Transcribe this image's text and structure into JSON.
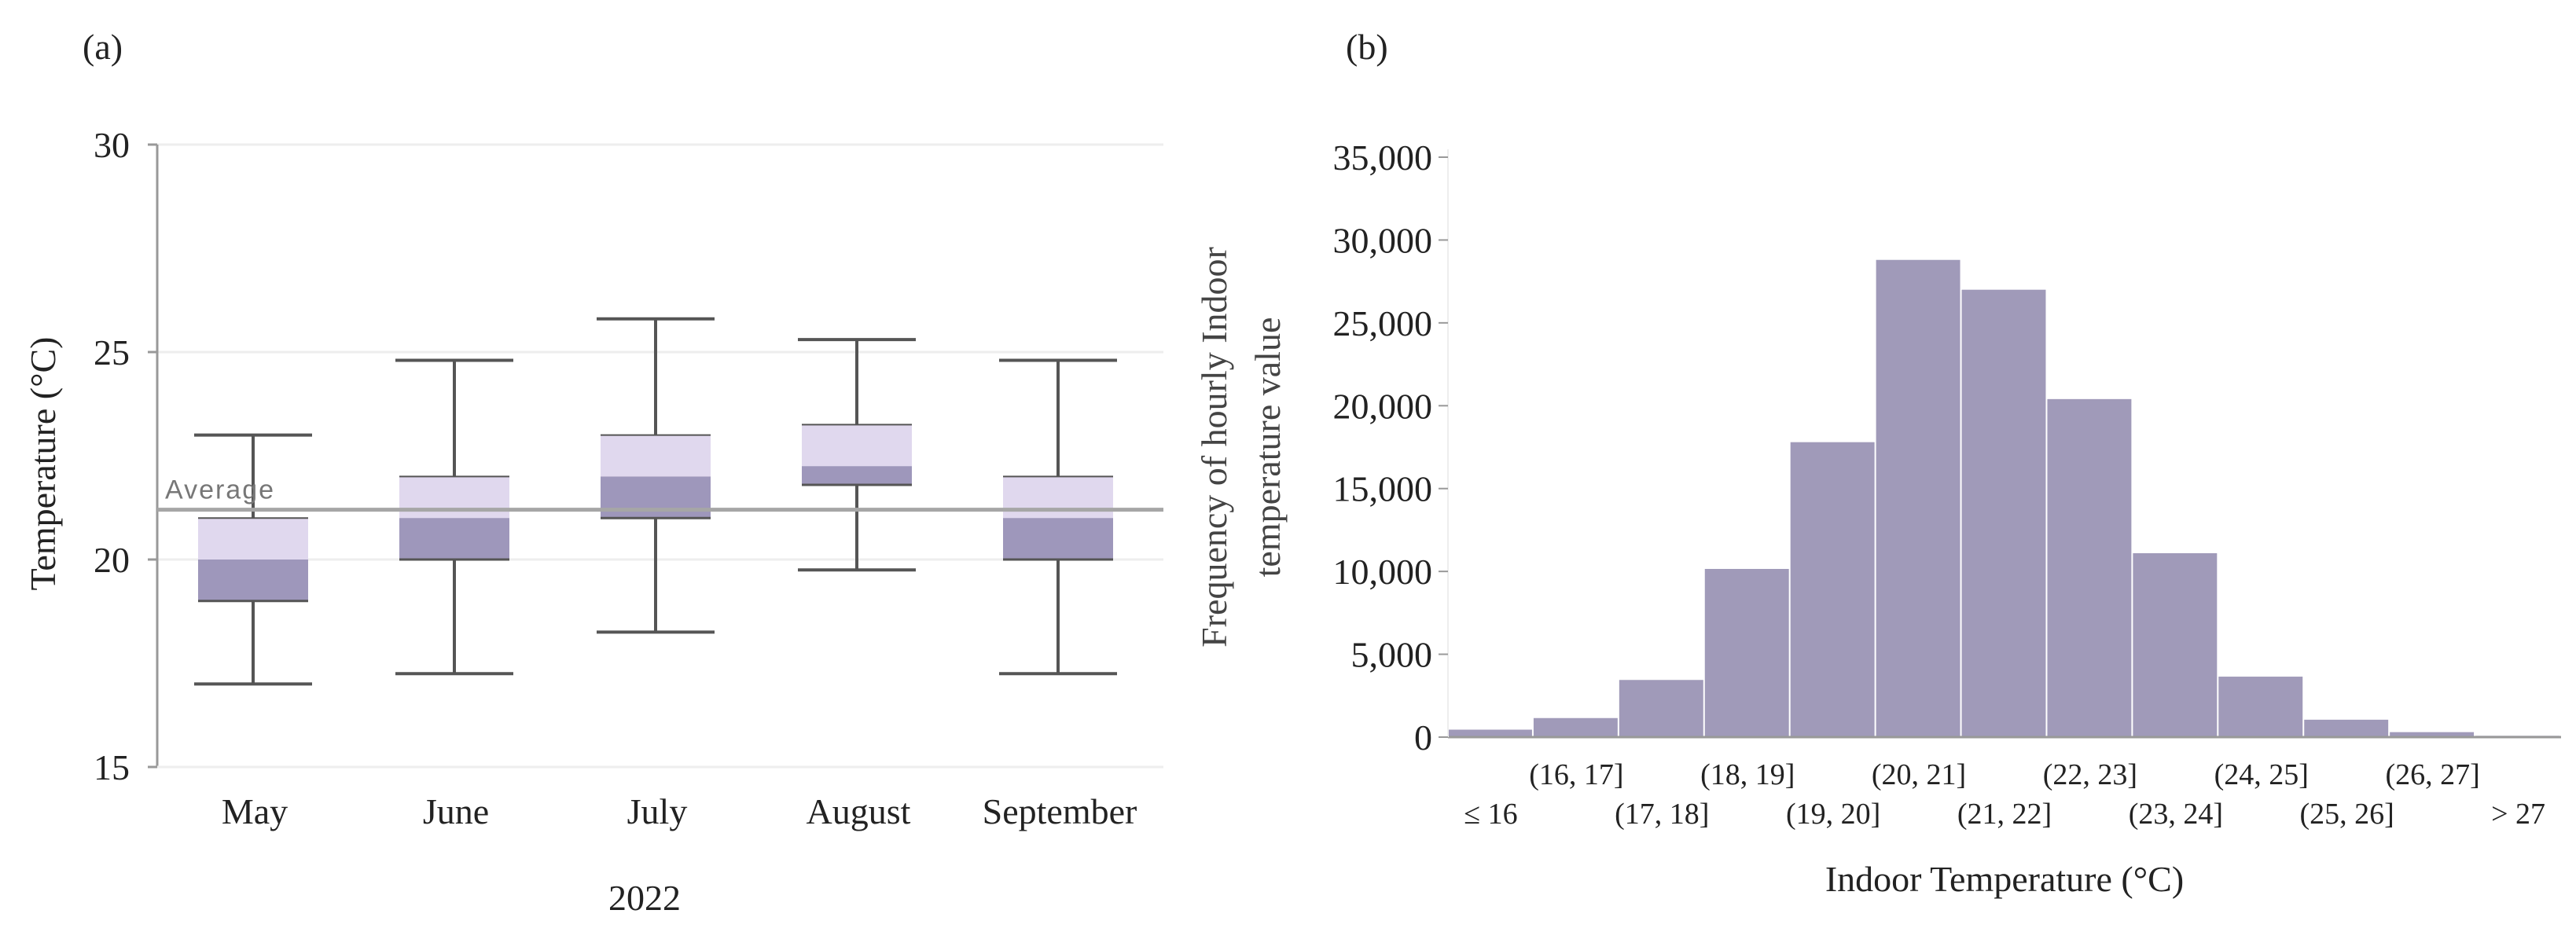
{
  "panel_a_label": "(a)",
  "panel_b_label": "(b)",
  "colors": {
    "box_upper": "#e0d8ee",
    "box_lower": "#9e97bb",
    "whisker": "#555555",
    "average_line": "#a6a6a6",
    "bar_fill": "#a09ab9",
    "axis": "#999999",
    "grid": "#eeeeee"
  },
  "chart_data": [
    {
      "type": "box",
      "title": "",
      "ylabel": "Temperature (°C)",
      "xlabel": "2022",
      "ylim": [
        15,
        30
      ],
      "yticks": [
        "15",
        "20",
        "25",
        "30"
      ],
      "average_label": "Average",
      "average_value": 21.2,
      "categories": [
        "May",
        "June",
        "July",
        "August",
        "September"
      ],
      "boxes": [
        {
          "name": "May",
          "min": 17,
          "q1": 19,
          "median": 20,
          "q3": 21,
          "max": 23
        },
        {
          "name": "June",
          "min": 17.25,
          "q1": 20,
          "median": 21,
          "q3": 22,
          "max": 24.8
        },
        {
          "name": "July",
          "min": 18.25,
          "q1": 21,
          "median": 22,
          "q3": 23,
          "max": 25.8
        },
        {
          "name": "August",
          "min": 19.75,
          "q1": 21.8,
          "median": 22.25,
          "q3": 23.25,
          "max": 25.3
        },
        {
          "name": "September",
          "min": 17.25,
          "q1": 20,
          "median": 21,
          "q3": 22,
          "max": 24.8
        }
      ]
    },
    {
      "type": "bar",
      "title": "",
      "ylabel_line1": "Frequency of hourly Indoor",
      "ylabel_line2": "temperature value",
      "xlabel": "Indoor Temperature (°C)",
      "ylim": [
        0,
        35000
      ],
      "yticks": [
        "0",
        "5,000",
        "10,000",
        "15,000",
        "20,000",
        "25,000",
        "30,000",
        "35,000"
      ],
      "categories": [
        "≤ 16",
        "(16, 17]",
        "(17, 18]",
        "(18, 19]",
        "(19, 20]",
        "(20, 21]",
        "(21, 22]",
        "(22, 23]",
        "(23, 24]",
        "(24, 25]",
        "(25, 26]",
        "(26, 27]",
        "> 27"
      ],
      "values": [
        450,
        1150,
        3450,
        10150,
        17800,
        28800,
        27000,
        20400,
        11100,
        3650,
        1050,
        300,
        80
      ]
    }
  ]
}
